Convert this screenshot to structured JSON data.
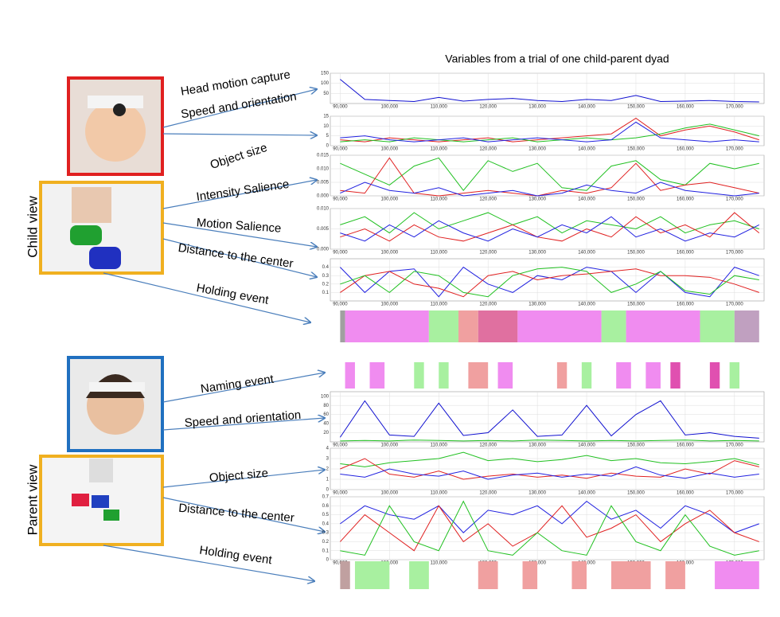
{
  "title": "Variables from a trial of one child-parent dyad",
  "groups": [
    "Child view",
    "Parent view"
  ],
  "arrow_labels": [
    "Head motion capture",
    "Speed and orientation",
    "Object size",
    "Intensity Salience",
    "Motion Salience",
    "Distance to the center",
    "Holding event",
    "Naming event",
    "Speed and orientation",
    "Object size",
    "Distance to the center",
    "Holding event"
  ],
  "xlim": [
    88000,
    176000
  ],
  "xticks": [
    {
      "value": 90000,
      "label": "90,000"
    },
    {
      "value": 100000,
      "label": "100,000"
    },
    {
      "value": 110000,
      "label": "110,000"
    },
    {
      "value": 120000,
      "label": "120,000"
    },
    {
      "value": 130000,
      "label": "130,000"
    },
    {
      "value": 140000,
      "label": "140,000"
    },
    {
      "value": 150000,
      "label": "150,000"
    },
    {
      "value": 160000,
      "label": "160,000"
    },
    {
      "value": 170000,
      "label": "170,000"
    }
  ],
  "time": [
    90000,
    95000,
    100000,
    105000,
    110000,
    115000,
    120000,
    125000,
    130000,
    135000,
    140000,
    145000,
    150000,
    155000,
    160000,
    165000,
    170000,
    175000
  ],
  "panels": [
    {
      "ylim": [
        0,
        150
      ],
      "yticks": [
        50,
        100,
        150
      ],
      "series": [
        {
          "color": "#1010d0",
          "values": [
            120,
            20,
            15,
            10,
            30,
            12,
            20,
            25,
            15,
            10,
            20,
            15,
            40,
            10,
            12,
            15,
            10,
            8
          ]
        }
      ]
    },
    {
      "ylim": [
        0,
        15
      ],
      "yticks": [
        0,
        5,
        10,
        15
      ],
      "series": [
        {
          "color": "#e02020",
          "values": [
            3,
            2,
            4,
            3,
            2,
            3,
            4,
            2,
            3,
            4,
            5,
            6,
            14,
            5,
            8,
            10,
            7,
            3
          ]
        },
        {
          "color": "#20c020",
          "values": [
            2,
            3,
            2,
            4,
            3,
            2,
            3,
            4,
            2,
            3,
            4,
            3,
            4,
            6,
            9,
            11,
            8,
            5
          ]
        },
        {
          "color": "#2020e0",
          "values": [
            4,
            5,
            3,
            2,
            3,
            4,
            2,
            3,
            4,
            3,
            2,
            3,
            12,
            4,
            3,
            2,
            3,
            2
          ]
        }
      ]
    },
    {
      "ylim": [
        0,
        0.015
      ],
      "yticks": [
        {
          "value": 0,
          "label": "0.000"
        },
        0.005,
        {
          "value": 0.01,
          "label": "0.010"
        },
        0.015
      ],
      "series": [
        {
          "color": "#20c020",
          "values": [
            0.012,
            0.008,
            0.004,
            0.011,
            0.014,
            0.002,
            0.013,
            0.009,
            0.012,
            0.003,
            0.002,
            0.011,
            0.013,
            0.006,
            0.004,
            0.012,
            0.01,
            0.012
          ]
        },
        {
          "color": "#e02020",
          "values": [
            0.002,
            0.001,
            0.014,
            0.001,
            0,
            0.001,
            0.002,
            0.001,
            0,
            0.002,
            0.001,
            0.003,
            0.012,
            0.002,
            0.004,
            0.005,
            0.003,
            0.001
          ]
        },
        {
          "color": "#2020e0",
          "values": [
            0.001,
            0.005,
            0.002,
            0.001,
            0.003,
            0,
            0.001,
            0.002,
            0,
            0.001,
            0.004,
            0.002,
            0.001,
            0.005,
            0.002,
            0.001,
            0,
            0.001
          ]
        }
      ]
    },
    {
      "ylim": [
        0,
        0.01
      ],
      "yticks": [
        {
          "value": 0,
          "label": "0.000"
        },
        0.005,
        {
          "value": 0.01,
          "label": "0.010"
        }
      ],
      "series": [
        {
          "color": "#20c020",
          "values": [
            0.006,
            0.008,
            0.004,
            0.009,
            0.005,
            0.007,
            0.009,
            0.006,
            0.008,
            0.004,
            0.007,
            0.006,
            0.005,
            0.008,
            0.004,
            0.006,
            0.007,
            0.005
          ]
        },
        {
          "color": "#e02020",
          "values": [
            0.003,
            0.005,
            0.002,
            0.006,
            0.003,
            0.002,
            0.004,
            0.006,
            0.003,
            0.002,
            0.005,
            0.003,
            0.008,
            0.004,
            0.006,
            0.003,
            0.009,
            0.004
          ]
        },
        {
          "color": "#2020e0",
          "values": [
            0.004,
            0.002,
            0.006,
            0.003,
            0.007,
            0.004,
            0.002,
            0.005,
            0.003,
            0.006,
            0.004,
            0.008,
            0.003,
            0.005,
            0.002,
            0.004,
            0.003,
            0.006
          ]
        }
      ]
    },
    {
      "ylim": [
        0,
        0.5
      ],
      "yticks": [
        0.1,
        0.2,
        0.3,
        0.4
      ],
      "series": [
        {
          "color": "#2020e0",
          "values": [
            0.4,
            0.1,
            0.35,
            0.38,
            0.05,
            0.4,
            0.2,
            0.1,
            0.3,
            0.25,
            0.4,
            0.35,
            0.1,
            0.35,
            0.1,
            0.05,
            0.4,
            0.3
          ]
        },
        {
          "color": "#e02020",
          "values": [
            0.1,
            0.3,
            0.35,
            0.2,
            0.15,
            0.05,
            0.3,
            0.35,
            0.25,
            0.3,
            0.32,
            0.35,
            0.38,
            0.3,
            0.3,
            0.28,
            0.2,
            0.1
          ]
        },
        {
          "color": "#20c020",
          "values": [
            0.2,
            0.3,
            0.1,
            0.35,
            0.3,
            0.1,
            0.05,
            0.3,
            0.38,
            0.4,
            0.35,
            0.1,
            0.2,
            0.35,
            0.12,
            0.08,
            0.3,
            0.25
          ]
        }
      ]
    },
    {
      "ylim": [
        0,
        110
      ],
      "yticks": [
        20,
        40,
        60,
        80,
        100
      ],
      "series": [
        {
          "color": "#1010d0",
          "values": [
            10,
            90,
            15,
            12,
            85,
            14,
            20,
            70,
            12,
            15,
            80,
            13,
            60,
            90,
            15,
            20,
            12,
            8
          ]
        },
        {
          "color": "#20c020",
          "values": [
            2,
            3,
            2,
            4,
            3,
            2,
            3,
            2,
            4,
            3,
            2,
            3,
            2,
            3,
            4,
            2,
            3,
            2
          ]
        }
      ]
    },
    {
      "ylim": [
        0,
        4
      ],
      "yticks": [
        0,
        1,
        2,
        3,
        4
      ],
      "series": [
        {
          "color": "#20c020",
          "values": [
            2.5,
            2.2,
            2.6,
            2.8,
            3,
            3.6,
            2.8,
            3,
            2.7,
            2.9,
            3.3,
            2.8,
            3,
            2.6,
            2.5,
            2.7,
            3,
            2.4
          ]
        },
        {
          "color": "#e02020",
          "values": [
            2,
            3,
            1.5,
            1.2,
            1.8,
            1,
            1.3,
            1.5,
            1.2,
            1.4,
            1.1,
            1.6,
            1.3,
            1.2,
            2,
            1.5,
            2.8,
            2.2
          ]
        },
        {
          "color": "#2020e0",
          "values": [
            1.5,
            1.2,
            2,
            1.5,
            1.3,
            1.8,
            1,
            1.4,
            1.6,
            1.2,
            1.5,
            1.3,
            2.2,
            1.4,
            1.1,
            1.6,
            1.2,
            1.5
          ]
        }
      ]
    },
    {
      "ylim": [
        0,
        0.7
      ],
      "yticks": [
        0,
        0.1,
        0.2,
        0.3,
        0.4,
        0.5,
        0.6,
        0.7
      ],
      "series": [
        {
          "color": "#2020e0",
          "values": [
            0.4,
            0.6,
            0.5,
            0.45,
            0.6,
            0.3,
            0.55,
            0.5,
            0.6,
            0.4,
            0.65,
            0.45,
            0.55,
            0.35,
            0.6,
            0.5,
            0.3,
            0.4
          ]
        },
        {
          "color": "#e02020",
          "values": [
            0.2,
            0.5,
            0.3,
            0.1,
            0.6,
            0.2,
            0.4,
            0.15,
            0.3,
            0.6,
            0.25,
            0.35,
            0.5,
            0.2,
            0.4,
            0.55,
            0.3,
            0.2
          ]
        },
        {
          "color": "#20c020",
          "values": [
            0.1,
            0.05,
            0.6,
            0.2,
            0.1,
            0.65,
            0.1,
            0.05,
            0.3,
            0.1,
            0.05,
            0.6,
            0.2,
            0.1,
            0.5,
            0.15,
            0.05,
            0.1
          ]
        }
      ]
    }
  ],
  "event_rows": [
    {
      "segments": [
        {
          "start": 90000,
          "end": 91000,
          "color": "#a0a0a0"
        },
        {
          "start": 91000,
          "end": 108000,
          "color": "#f08cf0"
        },
        {
          "start": 108000,
          "end": 114000,
          "color": "#a8f0a0"
        },
        {
          "start": 114000,
          "end": 118000,
          "color": "#f0a0a0"
        },
        {
          "start": 118000,
          "end": 126000,
          "color": "#e070a0"
        },
        {
          "start": 126000,
          "end": 143000,
          "color": "#f08cf0"
        },
        {
          "start": 143000,
          "end": 148000,
          "color": "#a8f0a0"
        },
        {
          "start": 148000,
          "end": 163000,
          "color": "#f08cf0"
        },
        {
          "start": 163000,
          "end": 170000,
          "color": "#a8f0a0"
        },
        {
          "start": 170000,
          "end": 175000,
          "color": "#c0a0c0"
        }
      ]
    },
    {
      "segments": [
        {
          "start": 91000,
          "end": 93000,
          "color": "#f08cf0"
        },
        {
          "start": 96000,
          "end": 99000,
          "color": "#f08cf0"
        },
        {
          "start": 105000,
          "end": 107000,
          "color": "#a8f0a0"
        },
        {
          "start": 110000,
          "end": 112000,
          "color": "#a8f0a0"
        },
        {
          "start": 116000,
          "end": 120000,
          "color": "#f0a0a0"
        },
        {
          "start": 122000,
          "end": 125000,
          "color": "#f08cf0"
        },
        {
          "start": 134000,
          "end": 136000,
          "color": "#f0a0a0"
        },
        {
          "start": 139000,
          "end": 141000,
          "color": "#a8f0a0"
        },
        {
          "start": 146000,
          "end": 149000,
          "color": "#f08cf0"
        },
        {
          "start": 152000,
          "end": 155000,
          "color": "#f08cf0"
        },
        {
          "start": 157000,
          "end": 159000,
          "color": "#e050b0"
        },
        {
          "start": 165000,
          "end": 167000,
          "color": "#e050b0"
        },
        {
          "start": 169000,
          "end": 171000,
          "color": "#a8f0a0"
        }
      ]
    },
    {
      "segments": [
        {
          "start": 90000,
          "end": 92000,
          "color": "#c0a0a0"
        },
        {
          "start": 93000,
          "end": 100000,
          "color": "#a8f0a0"
        },
        {
          "start": 104000,
          "end": 108000,
          "color": "#a8f0a0"
        },
        {
          "start": 118000,
          "end": 122000,
          "color": "#f0a0a0"
        },
        {
          "start": 127000,
          "end": 130000,
          "color": "#f0a0a0"
        },
        {
          "start": 137000,
          "end": 140000,
          "color": "#f0a0a0"
        },
        {
          "start": 145000,
          "end": 153000,
          "color": "#f0a0a0"
        },
        {
          "start": 156000,
          "end": 160000,
          "color": "#f0a0a0"
        },
        {
          "start": 166000,
          "end": 175000,
          "color": "#f08cf0"
        }
      ]
    }
  ]
}
